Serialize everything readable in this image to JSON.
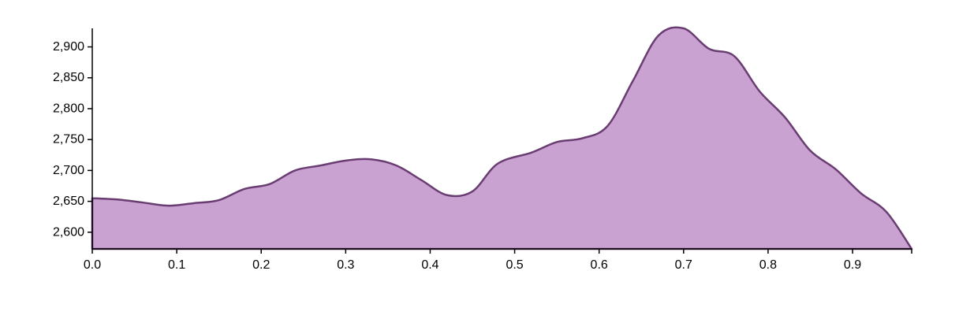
{
  "chart_data": {
    "type": "area",
    "title": "",
    "xlabel": "",
    "ylabel": "",
    "xlim": [
      0,
      0.97
    ],
    "ylim": [
      2573,
      2930
    ],
    "x_ticks": [
      0.0,
      0.1,
      0.2,
      0.3,
      0.4,
      0.5,
      0.6,
      0.7,
      0.8,
      0.9
    ],
    "x_tick_labels": [
      "0.0",
      "0.1",
      "0.2",
      "0.3",
      "0.4",
      "0.5",
      "0.6",
      "0.7",
      "0.8",
      "0.9"
    ],
    "y_ticks": [
      2600,
      2650,
      2700,
      2750,
      2800,
      2850,
      2900
    ],
    "y_tick_labels": [
      "2,600",
      "2,650",
      "2,700",
      "2,750",
      "2,800",
      "2,850",
      "2,900"
    ],
    "grid": false,
    "colors": {
      "fill": "#c9a2d2",
      "stroke": "#6a3d72"
    },
    "series": [
      {
        "x": [
          0.0,
          0.03,
          0.06,
          0.09,
          0.12,
          0.15,
          0.18,
          0.21,
          0.24,
          0.27,
          0.3,
          0.33,
          0.36,
          0.39,
          0.42,
          0.45,
          0.48,
          0.52,
          0.55,
          0.58,
          0.61,
          0.64,
          0.67,
          0.7,
          0.73,
          0.76,
          0.79,
          0.82,
          0.85,
          0.88,
          0.91,
          0.94,
          0.97
        ],
        "values": [
          2655,
          2653,
          2648,
          2643,
          2647,
          2652,
          2670,
          2678,
          2700,
          2708,
          2716,
          2718,
          2708,
          2684,
          2660,
          2666,
          2711,
          2729,
          2746,
          2752,
          2772,
          2845,
          2918,
          2930,
          2897,
          2885,
          2828,
          2786,
          2732,
          2702,
          2663,
          2633,
          2573
        ]
      }
    ]
  }
}
